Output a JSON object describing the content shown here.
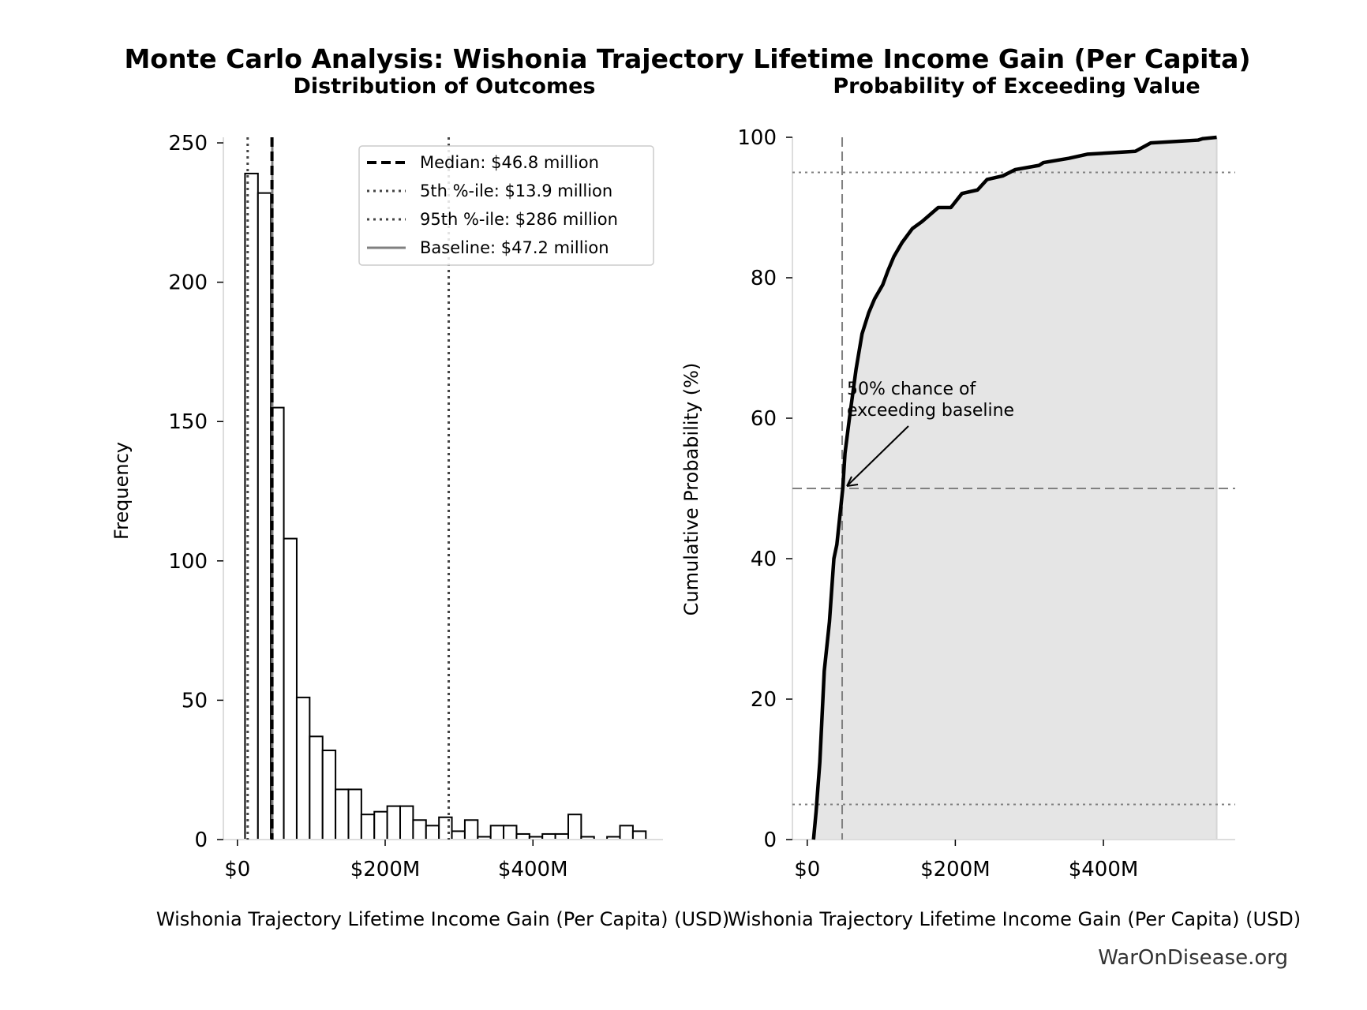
{
  "title": "Monte Carlo Analysis: Wishonia Trajectory Lifetime Income Gain (Per Capita)",
  "watermark": "WarOnDisease.org",
  "chart_data": [
    {
      "type": "bar",
      "subtitle": "Distribution of Outcomes",
      "xlabel": "Wishonia Trajectory Lifetime Income Gain (Per Capita) (USD)",
      "ylabel": "Frequency",
      "xlim": [
        -19,
        576
      ],
      "ylim": [
        0,
        252
      ],
      "xticks": [
        {
          "v": 0,
          "label": "$0"
        },
        {
          "v": 200,
          "label": "$200M"
        },
        {
          "v": 400,
          "label": "$400M"
        }
      ],
      "yticks": [
        {
          "v": 0,
          "label": "0"
        },
        {
          "v": 50,
          "label": "50"
        },
        {
          "v": 100,
          "label": "100"
        },
        {
          "v": 150,
          "label": "150"
        },
        {
          "v": 200,
          "label": "200"
        },
        {
          "v": 250,
          "label": "250"
        }
      ],
      "bin_start": 10.3,
      "bin_width": 17.5,
      "values": [
        239,
        232,
        155,
        108,
        51,
        37,
        32,
        18,
        18,
        9,
        10,
        12,
        12,
        7,
        5,
        8,
        3,
        7,
        1,
        5,
        5,
        2,
        1,
        2,
        2,
        9,
        1,
        0,
        1,
        5,
        3
      ],
      "reference_lines": [
        {
          "name": "Median: $46.8 million",
          "x": 46.8,
          "style": "dashed",
          "color": "#000000"
        },
        {
          "name": "5th %-ile: $13.9 million",
          "x": 13.9,
          "style": "dotted",
          "color": "#444444"
        },
        {
          "name": "95th %-ile: $286 million",
          "x": 286,
          "style": "dotted",
          "color": "#444444"
        },
        {
          "name": "Baseline: $47.2 million",
          "x": 47.2,
          "style": "solid",
          "color": "#808080"
        }
      ],
      "legend": "top-right",
      "grid": false
    },
    {
      "type": "area",
      "subtitle": "Probability of Exceeding Value",
      "xlabel": "Wishonia Trajectory Lifetime Income Gain (Per Capita) (USD)",
      "ylabel": "Cumulative Probability (%)",
      "xlim": [
        -20,
        578
      ],
      "ylim": [
        0,
        100
      ],
      "xticks": [
        {
          "v": 0,
          "label": "$0"
        },
        {
          "v": 200,
          "label": "$200M"
        },
        {
          "v": 400,
          "label": "$400M"
        }
      ],
      "yticks": [
        {
          "v": 0,
          "label": "0"
        },
        {
          "v": 20,
          "label": "20"
        },
        {
          "v": 40,
          "label": "40"
        },
        {
          "v": 60,
          "label": "60"
        },
        {
          "v": 80,
          "label": "80"
        },
        {
          "v": 100,
          "label": "100"
        }
      ],
      "x": [
        8.5,
        12,
        17,
        23,
        30,
        36,
        40,
        48,
        51,
        57,
        66,
        74,
        83,
        91,
        102,
        109,
        117,
        128,
        142,
        155,
        177,
        194,
        209,
        230,
        243,
        264,
        281,
        313,
        319,
        353,
        379,
        443,
        464,
        528,
        534,
        553
      ],
      "y": [
        0,
        4,
        11,
        24,
        31,
        40,
        42,
        50,
        55,
        60,
        67,
        72,
        75,
        77,
        79,
        81,
        83,
        85,
        87,
        88,
        90,
        90,
        92,
        92.5,
        94,
        94.5,
        95.4,
        96,
        96.4,
        97,
        97.6,
        98,
        99.2,
        99.6,
        99.8,
        100
      ],
      "baseline_x": 47.2,
      "hlines": [
        {
          "y": 50,
          "style": "dashed"
        },
        {
          "y": 5,
          "style": "dotted"
        },
        {
          "y": 95,
          "style": "dotted"
        }
      ],
      "annotation": {
        "lines": [
          "50% chance of",
          "exceeding baseline"
        ],
        "point": [
          47.2,
          50
        ]
      },
      "fill_color": "#e5e5e5",
      "line_color": "#000000",
      "grid": false
    }
  ]
}
